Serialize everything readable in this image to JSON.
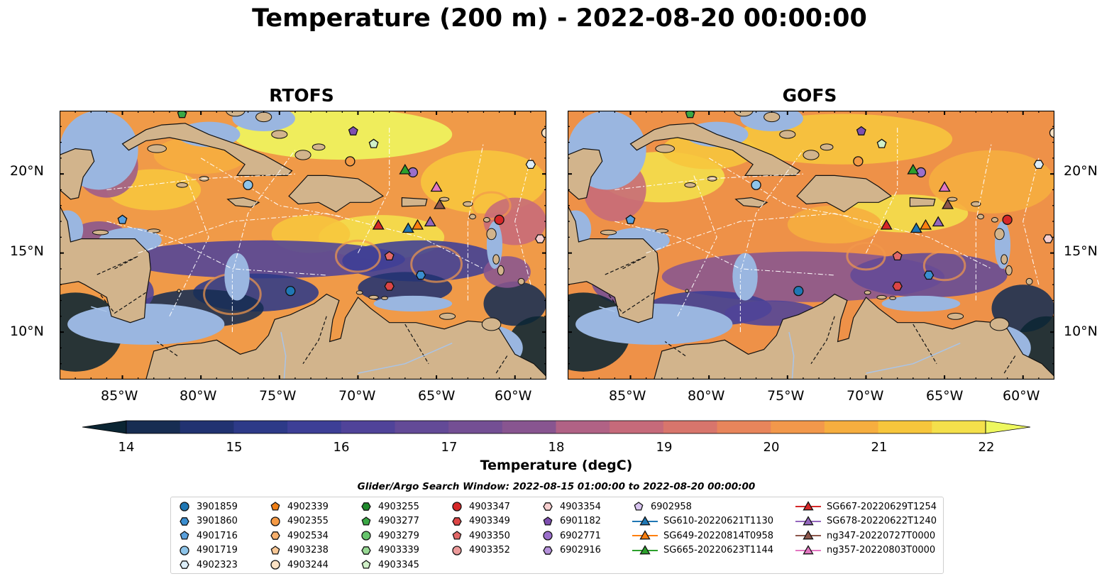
{
  "title": "Temperature (200 m) - 2022-08-20 00:00:00",
  "panels": [
    {
      "title": "RTOFS"
    },
    {
      "title": "GOFS"
    }
  ],
  "x_ticks": [
    "85°W",
    "80°W",
    "75°W",
    "70°W",
    "65°W",
    "60°W"
  ],
  "y_ticks": [
    "20°N",
    "15°N",
    "10°N"
  ],
  "colorbar": {
    "label": "Temperature (degC)",
    "ticks": [
      "14",
      "15",
      "16",
      "17",
      "18",
      "19",
      "20",
      "21",
      "22"
    ],
    "range": [
      14,
      22
    ],
    "extend": "both"
  },
  "colors": {
    "land": "#d2b48c",
    "shelf": "#9ab6e0",
    "cold": "#0b2533",
    "warm": "#f4f455"
  },
  "legend": {
    "title": "Glider/Argo Search Window: 2022-08-15 01:00:00 to 2022-08-20 00:00:00",
    "entries": [
      {
        "label": "3901859",
        "marker": "circle",
        "color": "#1f77b4"
      },
      {
        "label": "3901860",
        "marker": "hexagon",
        "color": "#3b8ed0"
      },
      {
        "label": "4901716",
        "marker": "pentagon",
        "color": "#5aa0dc"
      },
      {
        "label": "4901719",
        "marker": "circle",
        "color": "#8ec5ea"
      },
      {
        "label": "4902323",
        "marker": "hexagon",
        "color": "#dcedf8"
      },
      {
        "label": "4902339",
        "marker": "pentagon",
        "color": "#f07f15"
      },
      {
        "label": "4902355",
        "marker": "circle",
        "color": "#f59a45"
      },
      {
        "label": "4902534",
        "marker": "hexagon",
        "color": "#f7b06c"
      },
      {
        "label": "4903238",
        "marker": "pentagon",
        "color": "#f9c896"
      },
      {
        "label": "4903244",
        "marker": "circle",
        "color": "#fde2c4"
      },
      {
        "label": "4903255",
        "marker": "hexagon",
        "color": "#1f8a2c"
      },
      {
        "label": "4903277",
        "marker": "pentagon",
        "color": "#3aa845"
      },
      {
        "label": "4903279",
        "marker": "circle",
        "color": "#66c46c"
      },
      {
        "label": "4903339",
        "marker": "hexagon",
        "color": "#98d994"
      },
      {
        "label": "4903345",
        "marker": "pentagon",
        "color": "#d0f0c8"
      },
      {
        "label": "4903347",
        "marker": "circle",
        "color": "#d62728"
      },
      {
        "label": "4903349",
        "marker": "hexagon",
        "color": "#dd4545"
      },
      {
        "label": "4903350",
        "marker": "pentagon",
        "color": "#e26868"
      },
      {
        "label": "4903352",
        "marker": "circle",
        "color": "#ec9a9a"
      },
      {
        "label": "4903354",
        "marker": "hexagon",
        "color": "#f8d0d0"
      },
      {
        "label": "6901182",
        "marker": "pentagon",
        "color": "#7e4fb0"
      },
      {
        "label": "6902771",
        "marker": "circle",
        "color": "#9b6fcb"
      },
      {
        "label": "6902916",
        "marker": "hexagon",
        "color": "#b692dc"
      },
      {
        "label": "6902958",
        "marker": "pentagon",
        "color": "#d8c4f0"
      },
      {
        "label": "SG610-20220621T1130",
        "marker": "triangle",
        "color": "#1f77b4"
      },
      {
        "label": "SG649-20220814T0958",
        "marker": "triangle",
        "color": "#ff7f0e"
      },
      {
        "label": "SG665-20220623T1144",
        "marker": "triangle",
        "color": "#2ca02c"
      },
      {
        "label": "SG667-20220629T1254",
        "marker": "triangle",
        "color": "#d62728"
      },
      {
        "label": "SG678-20220622T1240",
        "marker": "triangle",
        "color": "#9467bd"
      },
      {
        "label": "ng347-20220727T0000",
        "marker": "triangle",
        "color": "#8c564b"
      },
      {
        "label": "ng357-20220803T0000",
        "marker": "triangle",
        "color": "#e377c2"
      }
    ]
  },
  "observations": [
    {
      "id": "3901859",
      "lon": -74.3,
      "lat": 12.6,
      "marker": "circle",
      "color": "#1f77b4"
    },
    {
      "id": "3901860",
      "lon": -66.0,
      "lat": 13.6,
      "marker": "hexagon",
      "color": "#3b8ed0"
    },
    {
      "id": "4901716",
      "lon": -85.0,
      "lat": 17.1,
      "marker": "pentagon",
      "color": "#5aa0dc"
    },
    {
      "id": "4901719",
      "lon": -77.0,
      "lat": 19.3,
      "marker": "circle",
      "color": "#8ec5ea"
    },
    {
      "id": "4902323",
      "lon": -59.0,
      "lat": 20.6,
      "marker": "hexagon",
      "color": "#dcedf8"
    },
    {
      "id": "4902355",
      "lon": -70.5,
      "lat": 20.8,
      "marker": "circle",
      "color": "#f59a45"
    },
    {
      "id": "4903244",
      "lon": -58.0,
      "lat": 22.6,
      "marker": "circle",
      "color": "#fde2c4"
    },
    {
      "id": "4903277",
      "lon": -81.2,
      "lat": 23.8,
      "marker": "pentagon",
      "color": "#3aa845"
    },
    {
      "id": "4903345",
      "lon": -69.0,
      "lat": 21.9,
      "marker": "pentagon",
      "color": "#d0f0c8"
    },
    {
      "id": "4903347",
      "lon": -61.0,
      "lat": 17.1,
      "marker": "circle",
      "color": "#d62728"
    },
    {
      "id": "4903349",
      "lon": -68.0,
      "lat": 12.9,
      "marker": "hexagon",
      "color": "#dd4545"
    },
    {
      "id": "4903350",
      "lon": -68.0,
      "lat": 14.8,
      "marker": "pentagon",
      "color": "#e26868"
    },
    {
      "id": "4903354",
      "lon": -58.4,
      "lat": 15.9,
      "marker": "hexagon",
      "color": "#f8d0d0"
    },
    {
      "id": "6901182",
      "lon": -70.3,
      "lat": 22.7,
      "marker": "pentagon",
      "color": "#7e4fb0"
    },
    {
      "id": "6902771",
      "lon": -66.5,
      "lat": 20.1,
      "marker": "circle",
      "color": "#9b6fcb"
    },
    {
      "id": "SG610-20220621T1130",
      "lon": -66.8,
      "lat": 16.5,
      "marker": "triangle",
      "color": "#1f77b4"
    },
    {
      "id": "SG649-20220814T0958",
      "lon": -66.2,
      "lat": 16.7,
      "marker": "triangle",
      "color": "#ff7f0e"
    },
    {
      "id": "SG665-20220623T1144",
      "lon": -67.0,
      "lat": 20.2,
      "marker": "triangle",
      "color": "#2ca02c"
    },
    {
      "id": "SG667-20220629T1254",
      "lon": -68.7,
      "lat": 16.7,
      "marker": "triangle",
      "color": "#d62728"
    },
    {
      "id": "SG678-20220622T1240",
      "lon": -65.4,
      "lat": 16.9,
      "marker": "triangle",
      "color": "#9467bd"
    },
    {
      "id": "ng347-20220727T0000",
      "lon": -64.8,
      "lat": 18.0,
      "marker": "triangle",
      "color": "#8c564b"
    },
    {
      "id": "ng357-20220803T0000",
      "lon": -65.0,
      "lat": 19.1,
      "marker": "triangle",
      "color": "#e377c2"
    }
  ]
}
